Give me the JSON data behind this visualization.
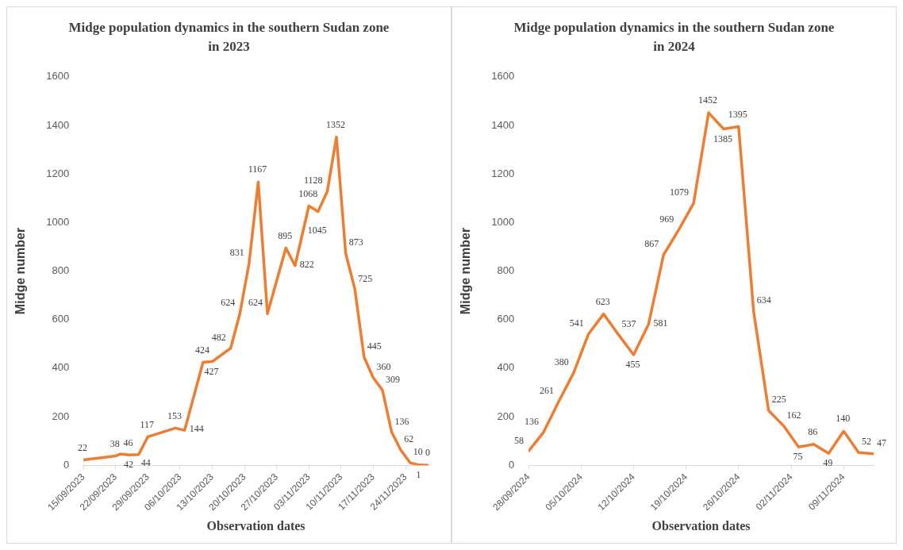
{
  "chart_data": [
    {
      "type": "line",
      "title": "Midge population dynamics in the southern Sudan zone in 2023",
      "xlabel": "Observation dates",
      "ylabel": "Midge number",
      "x": [
        "2023-09-15",
        "2023-09-22",
        "2023-09-23",
        "2023-09-25",
        "2023-09-27",
        "2023-09-29",
        "2023-10-05",
        "2023-10-07",
        "2023-10-11",
        "2023-10-13",
        "2023-10-17",
        "2023-10-19",
        "2023-10-21",
        "2023-10-23",
        "2023-10-25",
        "2023-10-29",
        "2023-10-31",
        "2023-11-03",
        "2023-11-05",
        "2023-11-07",
        "2023-11-09",
        "2023-11-11",
        "2023-11-13",
        "2023-11-15",
        "2023-11-17",
        "2023-11-19",
        "2023-11-21",
        "2023-11-23",
        "2023-11-25",
        "2023-11-27",
        "2023-11-29"
      ],
      "series": [
        {
          "color": "#ed7d31",
          "values": [
            22,
            38,
            46,
            42,
            44,
            117,
            153,
            144,
            424,
            427,
            482,
            624,
            831,
            1167,
            624,
            895,
            822,
            1068,
            1045,
            1128,
            1352,
            873,
            725,
            445,
            360,
            309,
            136,
            62,
            10,
            1,
            0
          ]
        }
      ],
      "xlim": [
        "2023-09-15",
        "2023-11-29"
      ],
      "xticks": [
        {
          "value": "2023-09-15",
          "label": "15/09/2023"
        },
        {
          "value": "2023-09-22",
          "label": "22/09/2023"
        },
        {
          "value": "2023-09-29",
          "label": "29/09/2023"
        },
        {
          "value": "2023-10-06",
          "label": "06/10/2023"
        },
        {
          "value": "2023-10-13",
          "label": "13/10/2023"
        },
        {
          "value": "2023-10-20",
          "label": "20/10/2023"
        },
        {
          "value": "2023-10-27",
          "label": "27/10/2023"
        },
        {
          "value": "2023-11-03",
          "label": "03/11/2023"
        },
        {
          "value": "2023-11-10",
          "label": "10/11/2023"
        },
        {
          "value": "2023-11-17",
          "label": "17/11/2023"
        },
        {
          "value": "2023-11-24",
          "label": "24/11/2023"
        }
      ],
      "ylim": [
        0,
        1600
      ],
      "yticks": [
        0,
        200,
        400,
        600,
        800,
        1000,
        1200,
        1400,
        1600
      ],
      "grid": false,
      "marker": "none",
      "line_style": "solid",
      "data_labels": true
    },
    {
      "type": "line",
      "title": "Midge population dynamics in the southern Sudan zone in 2024",
      "xlabel": "Observation dates",
      "ylabel": "Midge number",
      "x": [
        "2024-09-28",
        "2024-09-30",
        "2024-10-02",
        "2024-10-04",
        "2024-10-06",
        "2024-10-08",
        "2024-10-10",
        "2024-10-12",
        "2024-10-14",
        "2024-10-16",
        "2024-10-18",
        "2024-10-20",
        "2024-10-22",
        "2024-10-24",
        "2024-10-26",
        "2024-10-28",
        "2024-10-30",
        "2024-11-01",
        "2024-11-03",
        "2024-11-05",
        "2024-11-07",
        "2024-11-09",
        "2024-11-11",
        "2024-11-13"
      ],
      "series": [
        {
          "color": "#ed7d31",
          "values": [
            58,
            136,
            261,
            380,
            541,
            623,
            537,
            455,
            581,
            867,
            969,
            1079,
            1452,
            1385,
            1395,
            634,
            225,
            162,
            75,
            86,
            49,
            140,
            52,
            47
          ]
        }
      ],
      "xlim": [
        "2024-09-28",
        "2024-11-13"
      ],
      "xticks": [
        {
          "value": "2024-09-28",
          "label": "28/09/2024"
        },
        {
          "value": "2024-10-05",
          "label": "05/10/2024"
        },
        {
          "value": "2024-10-12",
          "label": "12/10/2024"
        },
        {
          "value": "2024-10-19",
          "label": "19/10/2024"
        },
        {
          "value": "2024-10-26",
          "label": "26/10/2024"
        },
        {
          "value": "2024-11-02",
          "label": "02/11/2024"
        },
        {
          "value": "2024-11-09",
          "label": "09/11/2024"
        }
      ],
      "ylim": [
        0,
        1600
      ],
      "yticks": [
        0,
        200,
        400,
        600,
        800,
        1000,
        1200,
        1400,
        1600
      ],
      "grid": false,
      "marker": "none",
      "line_style": "solid",
      "data_labels": true
    }
  ]
}
